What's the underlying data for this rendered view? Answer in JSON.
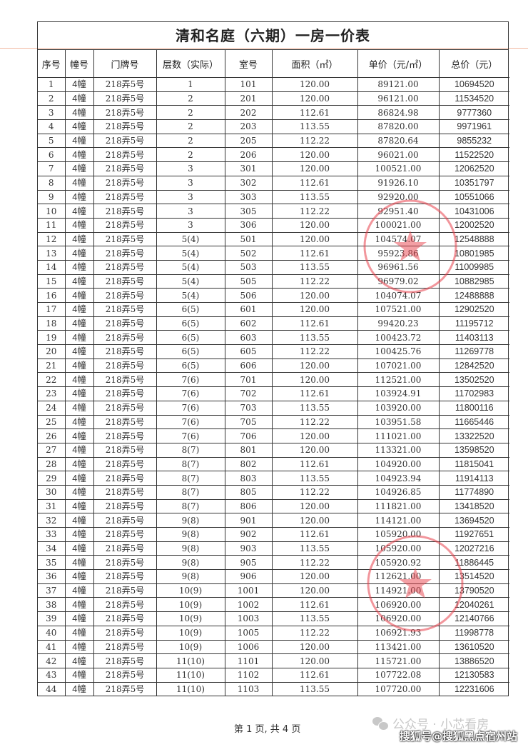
{
  "title": "清和名庭（六期）一房一价表",
  "columns": [
    "序号",
    "幢号",
    "门牌号",
    "层数（实际）",
    "室号",
    "面积（㎡）",
    "单价（元/㎡）",
    "总价（元）"
  ],
  "rows": [
    [
      "1",
      "4幢",
      "218弄5号",
      "1",
      "101",
      "120.00",
      "89121.00",
      "10694520"
    ],
    [
      "2",
      "4幢",
      "218弄5号",
      "2",
      "201",
      "120.00",
      "96121.00",
      "11534520"
    ],
    [
      "3",
      "4幢",
      "218弄5号",
      "2",
      "202",
      "112.61",
      "86824.98",
      "9777360"
    ],
    [
      "4",
      "4幢",
      "218弄5号",
      "2",
      "203",
      "113.55",
      "87820.00",
      "9971961"
    ],
    [
      "5",
      "4幢",
      "218弄5号",
      "2",
      "205",
      "112.22",
      "87820.64",
      "9855232"
    ],
    [
      "6",
      "4幢",
      "218弄5号",
      "2",
      "206",
      "120.00",
      "96021.00",
      "11522520"
    ],
    [
      "7",
      "4幢",
      "218弄5号",
      "3",
      "301",
      "120.00",
      "100521.00",
      "12062520"
    ],
    [
      "8",
      "4幢",
      "218弄5号",
      "3",
      "302",
      "112.61",
      "91926.10",
      "10351797"
    ],
    [
      "9",
      "4幢",
      "218弄5号",
      "3",
      "303",
      "113.55",
      "92920.00",
      "10551066"
    ],
    [
      "10",
      "4幢",
      "218弄5号",
      "3",
      "305",
      "112.22",
      "92951.40",
      "10431006"
    ],
    [
      "11",
      "4幢",
      "218弄5号",
      "3",
      "306",
      "120.00",
      "100021.00",
      "12002520"
    ],
    [
      "12",
      "4幢",
      "218弄5号",
      "5(4)",
      "501",
      "120.00",
      "104574.07",
      "12548888"
    ],
    [
      "13",
      "4幢",
      "218弄5号",
      "5(4)",
      "502",
      "112.61",
      "95923.86",
      "10801985"
    ],
    [
      "14",
      "4幢",
      "218弄5号",
      "5(4)",
      "503",
      "113.55",
      "96961.56",
      "11009985"
    ],
    [
      "15",
      "4幢",
      "218弄5号",
      "5(4)",
      "505",
      "112.22",
      "96979.02",
      "10882985"
    ],
    [
      "16",
      "4幢",
      "218弄5号",
      "5(4)",
      "506",
      "120.00",
      "104074.07",
      "12488888"
    ],
    [
      "17",
      "4幢",
      "218弄5号",
      "6(5)",
      "601",
      "120.00",
      "107521.00",
      "12902520"
    ],
    [
      "18",
      "4幢",
      "218弄5号",
      "6(5)",
      "602",
      "112.61",
      "99420.23",
      "11195712"
    ],
    [
      "19",
      "4幢",
      "218弄5号",
      "6(5)",
      "603",
      "113.55",
      "100423.72",
      "11403113"
    ],
    [
      "20",
      "4幢",
      "218弄5号",
      "6(5)",
      "605",
      "112.22",
      "100425.76",
      "11269778"
    ],
    [
      "21",
      "4幢",
      "218弄5号",
      "6(5)",
      "606",
      "120.00",
      "107021.00",
      "12842520"
    ],
    [
      "22",
      "4幢",
      "218弄5号",
      "7(6)",
      "701",
      "120.00",
      "112521.00",
      "13502520"
    ],
    [
      "23",
      "4幢",
      "218弄5号",
      "7(6)",
      "702",
      "112.61",
      "103924.91",
      "11702983"
    ],
    [
      "24",
      "4幢",
      "218弄5号",
      "7(6)",
      "703",
      "113.55",
      "103920.00",
      "11800116"
    ],
    [
      "25",
      "4幢",
      "218弄5号",
      "7(6)",
      "705",
      "112.22",
      "103951.58",
      "11665446"
    ],
    [
      "26",
      "4幢",
      "218弄5号",
      "7(6)",
      "706",
      "120.00",
      "111021.00",
      "13322520"
    ],
    [
      "27",
      "4幢",
      "218弄5号",
      "8(7)",
      "801",
      "120.00",
      "113321.00",
      "13598520"
    ],
    [
      "28",
      "4幢",
      "218弄5号",
      "8(7)",
      "802",
      "112.61",
      "104920.00",
      "11815041"
    ],
    [
      "29",
      "4幢",
      "218弄5号",
      "8(7)",
      "803",
      "113.55",
      "104923.94",
      "11914113"
    ],
    [
      "30",
      "4幢",
      "218弄5号",
      "8(7)",
      "805",
      "112.22",
      "104926.85",
      "11774890"
    ],
    [
      "31",
      "4幢",
      "218弄5号",
      "8(7)",
      "806",
      "120.00",
      "111821.00",
      "13418520"
    ],
    [
      "32",
      "4幢",
      "218弄5号",
      "9(8)",
      "901",
      "120.00",
      "114121.00",
      "13694520"
    ],
    [
      "33",
      "4幢",
      "218弄5号",
      "9(8)",
      "902",
      "112.61",
      "105920.00",
      "11927651"
    ],
    [
      "34",
      "4幢",
      "218弄5号",
      "9(8)",
      "903",
      "113.55",
      "105920.00",
      "12027216"
    ],
    [
      "35",
      "4幢",
      "218弄5号",
      "9(8)",
      "905",
      "112.22",
      "105920.92",
      "11886445"
    ],
    [
      "36",
      "4幢",
      "218弄5号",
      "9(8)",
      "906",
      "120.00",
      "112621.00",
      "13514520"
    ],
    [
      "37",
      "4幢",
      "218弄5号",
      "10(9)",
      "1001",
      "120.00",
      "114921.00",
      "13790520"
    ],
    [
      "38",
      "4幢",
      "218弄5号",
      "10(9)",
      "1002",
      "112.61",
      "106920.00",
      "12040261"
    ],
    [
      "39",
      "4幢",
      "218弄5号",
      "10(9)",
      "1003",
      "113.55",
      "106920.00",
      "12140766"
    ],
    [
      "40",
      "4幢",
      "218弄5号",
      "10(9)",
      "1005",
      "112.22",
      "106921.93",
      "11998778"
    ],
    [
      "41",
      "4幢",
      "218弄5号",
      "10(9)",
      "1006",
      "120.00",
      "113421.00",
      "13610520"
    ],
    [
      "42",
      "4幢",
      "218弄5号",
      "11(10)",
      "1101",
      "120.00",
      "115721.00",
      "13886520"
    ],
    [
      "43",
      "4幢",
      "218弄5号",
      "11(10)",
      "1102",
      "112.61",
      "107722.08",
      "12130583"
    ],
    [
      "44",
      "4幢",
      "218弄5号",
      "11(10)",
      "1103",
      "113.55",
      "107720.00",
      "12231606"
    ]
  ],
  "footer": {
    "page": "第 1 页, 共 4 页"
  },
  "watermark": {
    "wechat": "公众号 · 小芯看房",
    "sohu": "搜狐号@搜狐黑点宿州站"
  },
  "colors": {
    "stamp": "#e8404a",
    "border": "#333333"
  }
}
